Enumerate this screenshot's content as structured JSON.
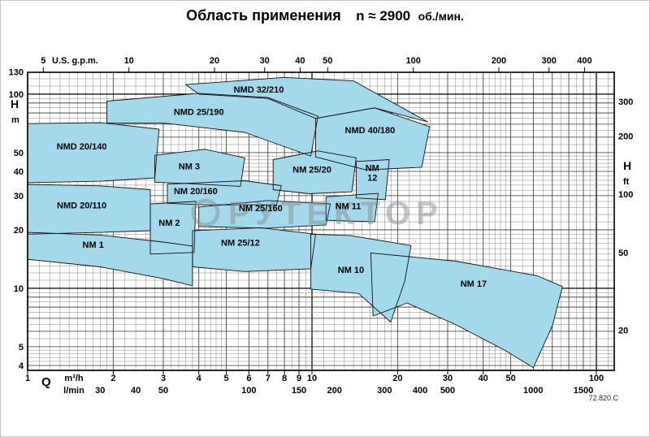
{
  "title": {
    "main": "Область применения",
    "rpm": "n ≈ 2900",
    "unit": "об./мин."
  },
  "watermark": {
    "text": "РУТЕКТОР"
  },
  "footer": {
    "doc_number": "72.820.C"
  },
  "chart_data": {
    "type": "area",
    "title": "Область применения n ≈ 2900 об./мин.",
    "description": "Pump application ranges, flow Q vs head H on log-log axes",
    "axes": {
      "x_bottom_primary": {
        "label": "Q",
        "unit": "m³/h",
        "scale": "log",
        "range": [
          1,
          115
        ],
        "ticks": [
          1,
          2,
          3,
          4,
          5,
          6,
          7,
          8,
          9,
          10,
          20,
          30,
          40,
          50,
          100
        ]
      },
      "x_bottom_secondary": {
        "unit": "l/min",
        "lmin_per_m3h": 16.667,
        "ticks": [
          30,
          40,
          50,
          100,
          150,
          200,
          300,
          400,
          500,
          1000,
          1500
        ]
      },
      "x_top": {
        "unit": "U.S. g.p.m.",
        "gpm_per_m3h": 4.403,
        "ticks": [
          5,
          10,
          20,
          30,
          40,
          50,
          100,
          200,
          300,
          400
        ]
      },
      "y_left": {
        "label": "H",
        "unit": "m",
        "scale": "log",
        "range": [
          3.78,
          130
        ],
        "ticks": [
          130,
          100,
          50,
          40,
          30,
          20,
          10,
          5,
          4
        ]
      },
      "y_right": {
        "label": "H",
        "unit": "ft",
        "ft_per_m": 3.281,
        "ticks": [
          300,
          200,
          100,
          50,
          20
        ]
      }
    },
    "style": {
      "region_fill": "#a3d9eb",
      "region_stroke": "#111111",
      "grid_minor": "#777777",
      "grid_mid": "#333333",
      "grid_major": "#000000"
    },
    "regions": [
      {
        "name": "NMD 20/140",
        "label_at": [
          1.55,
          52
        ],
        "points": [
          [
            1,
            70.5
          ],
          [
            1.8,
            71.3
          ],
          [
            2.9,
            66
          ],
          [
            2.8,
            37
          ],
          [
            1.8,
            35.6
          ],
          [
            1,
            35
          ]
        ]
      },
      {
        "name": "NMD 25/190",
        "label_at": [
          4,
          78
        ],
        "points": [
          [
            1.9,
            92
          ],
          [
            4,
            101
          ],
          [
            7,
            96
          ],
          [
            10.5,
            77
          ],
          [
            9.9,
            48
          ],
          [
            5.8,
            63.5
          ],
          [
            3,
            71
          ],
          [
            1.9,
            71
          ]
        ]
      },
      {
        "name": "NMD 32/210",
        "label_at": [
          6.5,
          102
        ],
        "points": [
          [
            3.6,
            112
          ],
          [
            8,
            122
          ],
          [
            14,
            117
          ],
          [
            25.5,
            72
          ],
          [
            16.6,
            85
          ],
          [
            10.3,
            75
          ],
          [
            7,
            95
          ],
          [
            4,
            100
          ]
        ]
      },
      {
        "name": "NMD 40/180",
        "label_at": [
          16,
          63
        ],
        "points": [
          [
            10.3,
            75
          ],
          [
            16.6,
            85
          ],
          [
            25.9,
            68
          ],
          [
            24.3,
            42
          ],
          [
            15.5,
            40.7
          ],
          [
            10.3,
            47.5
          ]
        ]
      },
      {
        "name": "NMD 20/110",
        "label_at": [
          1.55,
          25.8
        ],
        "points": [
          [
            1,
            34.3
          ],
          [
            1.8,
            33.7
          ],
          [
            2.7,
            32.2
          ],
          [
            2.7,
            19.8
          ],
          [
            1.8,
            19.4
          ],
          [
            1,
            19
          ]
        ]
      },
      {
        "name": "NM 3",
        "label_at": [
          3.7,
          41
        ],
        "points": [
          [
            2.8,
            48.4
          ],
          [
            4.2,
            52
          ],
          [
            5.8,
            47
          ],
          [
            5.6,
            33.5
          ],
          [
            3.7,
            34.6
          ],
          [
            2.8,
            35.2
          ]
        ]
      },
      {
        "name": "NM 25/20",
        "label_at": [
          10,
          39.5
        ],
        "points": [
          [
            7.3,
            46
          ],
          [
            10.5,
            51
          ],
          [
            14.3,
            47
          ],
          [
            13.8,
            31.4
          ],
          [
            9.8,
            30.7
          ],
          [
            7.3,
            32.2
          ]
        ]
      },
      {
        "name": "NM 12",
        "label_at": [
          16.3,
          38
        ],
        "label_lines": [
          "NM",
          "12"
        ],
        "points": [
          [
            14.3,
            45
          ],
          [
            18.7,
            46
          ],
          [
            18.1,
            28.6
          ],
          [
            14.3,
            29.2
          ]
        ]
      },
      {
        "name": "NM 20/160",
        "label_at": [
          3.9,
          30.5
        ],
        "points": [
          [
            3.1,
            34.4
          ],
          [
            5.8,
            35.8
          ],
          [
            7.8,
            33.8
          ],
          [
            7.5,
            26.9
          ],
          [
            4.2,
            26.9
          ],
          [
            3.1,
            27.4
          ]
        ]
      },
      {
        "name": "NM 25/160",
        "label_at": [
          6.6,
          25
        ],
        "points": [
          [
            4,
            26.2
          ],
          [
            7,
            28.3
          ],
          [
            11.6,
            27.2
          ],
          [
            11.2,
            21.2
          ],
          [
            7,
            20.4
          ],
          [
            4,
            20.8
          ]
        ]
      },
      {
        "name": "NM 11",
        "label_at": [
          13.4,
          25.5
        ],
        "points": [
          [
            11.2,
            29.6
          ],
          [
            17.1,
            30.8
          ],
          [
            16.6,
            22
          ],
          [
            11.2,
            22.4
          ]
        ]
      },
      {
        "name": "NM 2",
        "label_at": [
          3.15,
          21
        ],
        "points": [
          [
            2.7,
            27.2
          ],
          [
            3.9,
            28
          ],
          [
            3.85,
            15.3
          ],
          [
            2.7,
            15
          ]
        ]
      },
      {
        "name": "NM 25/12",
        "label_at": [
          5.6,
          16.6
        ],
        "points": [
          [
            3.8,
            19.8
          ],
          [
            6.6,
            20.5
          ],
          [
            10.3,
            19
          ],
          [
            9.9,
            12.6
          ],
          [
            5.8,
            12.2
          ],
          [
            3.8,
            12.9
          ]
        ]
      },
      {
        "name": "NM 1",
        "label_at": [
          1.7,
          16.2
        ],
        "points": [
          [
            1,
            19.4
          ],
          [
            1.8,
            18.8
          ],
          [
            3,
            17.3
          ],
          [
            3.8,
            16.5
          ],
          [
            3.8,
            10.3
          ],
          [
            3,
            11.2
          ],
          [
            1.8,
            12.9
          ],
          [
            1,
            14.1
          ]
        ]
      },
      {
        "name": "NM 10",
        "label_at": [
          13.7,
          12
        ],
        "points": [
          [
            9.9,
            19
          ],
          [
            13.6,
            18.7
          ],
          [
            22.3,
            16.6
          ],
          [
            21.2,
            10.9
          ],
          [
            18.9,
            6.7
          ],
          [
            14.6,
            9.4
          ],
          [
            9.9,
            9.9
          ]
        ]
      },
      {
        "name": "NM 17",
        "label_at": [
          37,
          10.2
        ],
        "points": [
          [
            16.1,
            15.2
          ],
          [
            32,
            13.8
          ],
          [
            62,
            11.6
          ],
          [
            76,
            10.2
          ],
          [
            70,
            6.4
          ],
          [
            60,
            3.9
          ],
          [
            47.6,
            4.8
          ],
          [
            32,
            6.5
          ],
          [
            21.6,
            8.4
          ],
          [
            16.4,
            7.2
          ]
        ]
      }
    ]
  }
}
